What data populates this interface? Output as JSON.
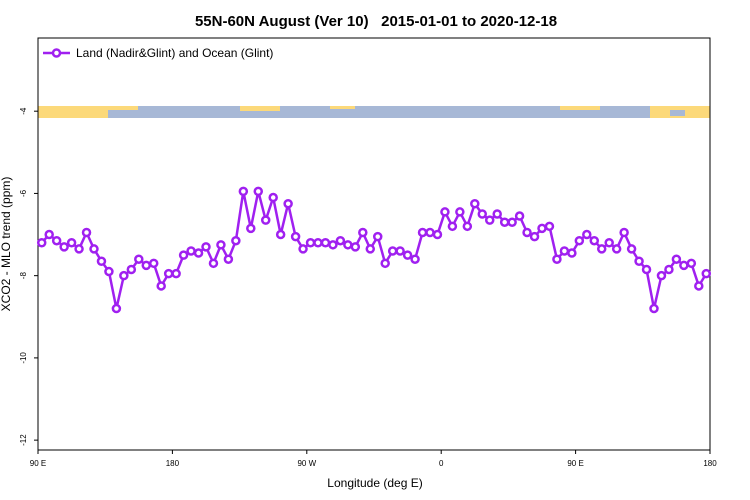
{
  "chart_data": {
    "type": "line",
    "title": "55N-60N August (Ver 10)   2015-01-01 to 2020-12-18",
    "x_label": "Longitude (deg E)",
    "y_label": "XCO2 - MLO trend (ppm)",
    "legend_position": "upper left",
    "xlim": [
      90,
      540
    ],
    "ylim": [
      -12.24,
      -2.22
    ],
    "xticks": [
      {
        "value": 90,
        "label": "90 E"
      },
      {
        "value": 180,
        "label": "180"
      },
      {
        "value": 270,
        "label": "90 W"
      },
      {
        "value": 360,
        "label": "0"
      },
      {
        "value": 450,
        "label": "90 E"
      },
      {
        "value": 540,
        "label": "180"
      }
    ],
    "yticks": [
      -4,
      -6,
      -8,
      -10,
      -12
    ],
    "x": [
      92.5,
      97.5,
      102.5,
      107.5,
      112.5,
      117.5,
      122.5,
      127.5,
      132.5,
      137.5,
      142.5,
      147.5,
      152.5,
      157.5,
      162.5,
      167.5,
      172.5,
      177.5,
      182.5,
      187.5,
      192.5,
      197.5,
      202.5,
      207.5,
      212.5,
      217.5,
      222.5,
      227.5,
      232.5,
      237.5,
      242.5,
      247.5,
      252.5,
      257.5,
      262.5,
      267.5,
      272.5,
      277.5,
      282.5,
      287.5,
      292.5,
      297.5,
      302.5,
      307.5,
      312.5,
      317.5,
      322.5,
      327.5,
      332.5,
      337.5,
      342.5,
      347.5,
      352.5,
      357.5,
      362.5,
      367.5,
      372.5,
      377.5,
      382.5,
      387.5,
      392.5,
      397.5,
      402.5,
      407.5,
      412.5,
      417.5,
      422.5,
      427.5,
      432.5,
      437.5,
      442.5,
      447.5,
      452.5,
      457.5,
      462.5,
      467.5,
      472.5,
      477.5,
      482.5,
      487.5,
      492.5,
      497.5,
      502.5,
      507.5,
      512.5,
      517.5,
      522.5,
      527.5,
      532.5,
      537.5
    ],
    "series": [
      {
        "name": "Land (Nadir&Glint) and Ocean (Glint)",
        "color": "#a020f0",
        "values": [
          -7.2,
          -7.0,
          -7.15,
          -7.3,
          -7.2,
          -7.35,
          -6.95,
          -7.35,
          -7.65,
          -7.9,
          -8.8,
          -8.0,
          -7.85,
          -7.6,
          -7.75,
          -7.7,
          -8.25,
          -7.95,
          -7.95,
          -7.5,
          -7.4,
          -7.45,
          -7.3,
          -7.7,
          -7.25,
          -7.6,
          -7.15,
          -5.95,
          -6.85,
          -5.95,
          -6.65,
          -6.1,
          -7.0,
          -6.25,
          -7.05,
          -7.35,
          -7.2,
          -7.2,
          -7.2,
          -7.25,
          -7.15,
          -7.25,
          -7.3,
          -6.95,
          -7.35,
          -7.05,
          -7.7,
          -7.4,
          -7.4,
          -7.5,
          -7.6,
          -6.95,
          -6.95,
          -7.0,
          -6.45,
          -6.8,
          -6.45,
          -6.8,
          -6.25,
          -6.5,
          -6.65,
          -6.5,
          -6.7,
          -6.7,
          -6.55,
          -6.95,
          -7.05,
          -6.85,
          -6.8,
          -7.6,
          -7.4,
          -7.45,
          -7.15,
          -7.0,
          -7.15,
          -7.35,
          -7.2,
          -7.35,
          -6.95,
          -7.35,
          -7.65,
          -7.85,
          -8.8,
          -8.0,
          -7.85,
          -7.6,
          -7.75,
          -7.7,
          -8.25,
          -7.95
        ]
      }
    ]
  }
}
